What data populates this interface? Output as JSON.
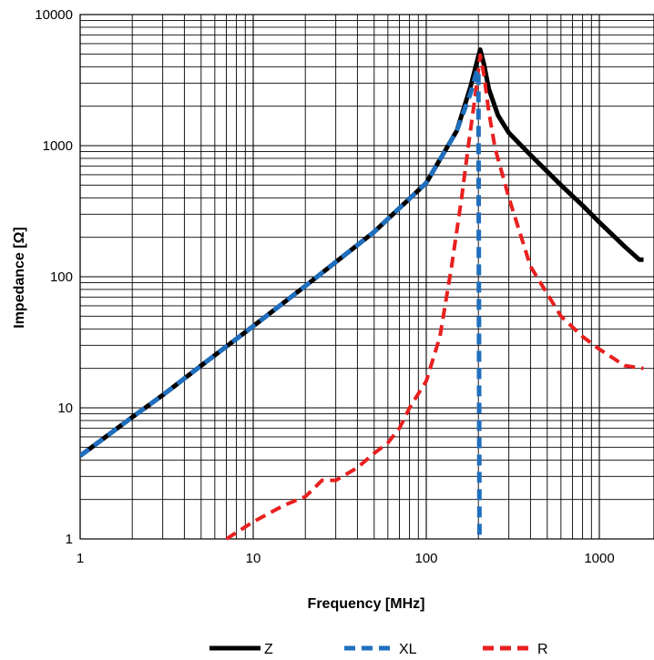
{
  "chart_data": {
    "type": "line",
    "xlabel": "Frequency [MHz]",
    "ylabel": "Impedance [Ω]",
    "x_scale": "log",
    "y_scale": "log",
    "xlim": [
      1,
      1800
    ],
    "ylim": [
      1,
      10000
    ],
    "grid": true,
    "legend_position": "bottom",
    "x_ticks": [
      1,
      10,
      100,
      1000
    ],
    "x_tick_labels": [
      "1",
      "10",
      "100",
      "1000"
    ],
    "y_ticks": [
      1,
      10,
      100,
      1000,
      10000
    ],
    "y_tick_labels": [
      "1",
      "10",
      "100",
      "1000",
      "10000"
    ],
    "series": [
      {
        "name": "Z",
        "color": "#000000",
        "style": "solid",
        "points": [
          [
            1,
            4.3
          ],
          [
            2,
            8.5
          ],
          [
            3,
            12.5
          ],
          [
            5,
            21
          ],
          [
            10,
            42
          ],
          [
            20,
            85
          ],
          [
            50,
            220
          ],
          [
            100,
            520
          ],
          [
            150,
            1300
          ],
          [
            180,
            2800
          ],
          [
            200,
            4800
          ],
          [
            205,
            5400
          ],
          [
            215,
            4200
          ],
          [
            230,
            2700
          ],
          [
            260,
            1700
          ],
          [
            300,
            1250
          ],
          [
            400,
            850
          ],
          [
            600,
            500
          ],
          [
            800,
            350
          ],
          [
            1000,
            260
          ],
          [
            1400,
            170
          ],
          [
            1700,
            135
          ],
          [
            1800,
            135
          ]
        ]
      },
      {
        "name": "XL",
        "color": "#1f6fbf",
        "style": "dashed",
        "points": [
          [
            1,
            4.3
          ],
          [
            2,
            8.5
          ],
          [
            3,
            12.5
          ],
          [
            5,
            21
          ],
          [
            10,
            42
          ],
          [
            20,
            85
          ],
          [
            50,
            220
          ],
          [
            100,
            520
          ],
          [
            150,
            1300
          ],
          [
            180,
            2500
          ],
          [
            195,
            3600
          ],
          [
            200,
            3800
          ],
          [
            203,
            1
          ],
          [
            205,
            1
          ]
        ]
      },
      {
        "name": "R",
        "color": "#e8201f",
        "style": "dashed",
        "points": [
          [
            7,
            1
          ],
          [
            10,
            1.35
          ],
          [
            15,
            1.8
          ],
          [
            20,
            2.1
          ],
          [
            25,
            2.8
          ],
          [
            30,
            2.8
          ],
          [
            40,
            3.5
          ],
          [
            50,
            4.5
          ],
          [
            60,
            5.4
          ],
          [
            70,
            7.0
          ],
          [
            80,
            10
          ],
          [
            100,
            16
          ],
          [
            120,
            35
          ],
          [
            140,
            120
          ],
          [
            160,
            400
          ],
          [
            175,
            1000
          ],
          [
            190,
            2200
          ],
          [
            205,
            4900
          ],
          [
            215,
            3500
          ],
          [
            230,
            1800
          ],
          [
            250,
            950
          ],
          [
            300,
            400
          ],
          [
            400,
            120
          ],
          [
            600,
            50
          ],
          [
            800,
            35
          ],
          [
            1000,
            28
          ],
          [
            1400,
            21
          ],
          [
            1800,
            20
          ]
        ]
      }
    ]
  }
}
